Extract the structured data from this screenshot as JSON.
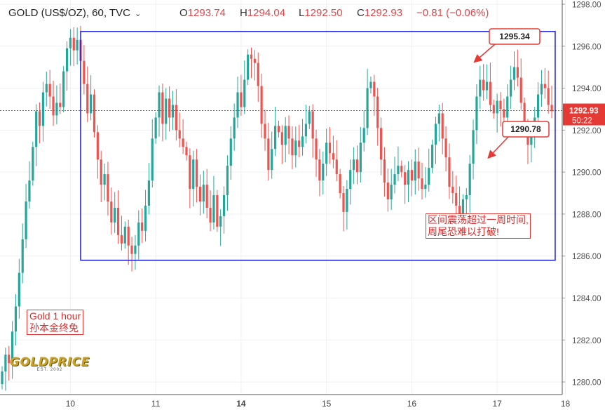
{
  "header": {
    "symbol": "GOLD (US$/OZ), 60, TVC",
    "open_label": "O",
    "open_value": "1293.74",
    "high_label": "H",
    "high_value": "1294.04",
    "low_label": "L",
    "low_value": "1292.50",
    "close_label": "C",
    "close_value": "1292.93",
    "change": "−0.81 (−0.06%)"
  },
  "colors": {
    "up": "#26a69a",
    "down": "#ef5350",
    "box": "#1a1ad6",
    "callout": "#e53935",
    "price_line": "#e53935",
    "axis_text": "#555555"
  },
  "current_price_tag": {
    "price": "1292.93",
    "countdown": "50:22"
  },
  "price_callouts": [
    {
      "label": "1295.34",
      "price": 1295.34,
      "candle_index": 139
    },
    {
      "label": "1290.78",
      "price": 1290.78,
      "candle_index": 143
    }
  ],
  "annotation": {
    "line1": "区间震荡超过一周时间,",
    "line2": "周尾恐难以打破!"
  },
  "note": {
    "line1": "Gold 1 hour",
    "line2": "孙本金终免"
  },
  "logo": {
    "text": "GOLDPRICE",
    "sub": "EST. 2002"
  },
  "chart_data": {
    "type": "candlestick",
    "title": "GOLD (US$/OZ), 60, TVC",
    "ylim": [
      1279.4,
      1298.2
    ],
    "y_ticks": [
      1280,
      1282,
      1284,
      1286,
      1288,
      1290,
      1292,
      1294,
      1296,
      1298
    ],
    "x_ticks": [
      {
        "label": "10",
        "index": 20,
        "bold": false
      },
      {
        "label": "11",
        "index": 45,
        "bold": false
      },
      {
        "label": "14",
        "index": 70,
        "bold": true
      },
      {
        "label": "15",
        "index": 95,
        "bold": false
      },
      {
        "label": "16",
        "index": 120,
        "bold": false
      },
      {
        "label": "17",
        "index": 145,
        "bold": false
      },
      {
        "label": "18",
        "index": 165,
        "bold": false
      }
    ],
    "range_box": {
      "start_index": 23,
      "end_index": 162,
      "low": 1285.8,
      "high": 1296.7
    },
    "closes": [
      1280.5,
      1281.3,
      1280.9,
      1282.4,
      1283.6,
      1285.2,
      1286.8,
      1288.6,
      1289.6,
      1291.2,
      1292.9,
      1292.2,
      1293.8,
      1294.2,
      1293.6,
      1292.7,
      1293.3,
      1293.1,
      1294.8,
      1295.9,
      1296.4,
      1295.8,
      1296.3,
      1295.3,
      1294.2,
      1292.8,
      1293.7,
      1291.9,
      1290.6,
      1289.4,
      1289.9,
      1288.6,
      1287.6,
      1288.3,
      1287.0,
      1286.6,
      1287.4,
      1286.5,
      1286.1,
      1286.5,
      1287.6,
      1287.2,
      1288.4,
      1289.6,
      1291.6,
      1292.6,
      1293.8,
      1292.3,
      1293.5,
      1292.6,
      1293.2,
      1292.0,
      1291.6,
      1291.2,
      1290.8,
      1289.2,
      1290.6,
      1289.3,
      1288.6,
      1289.4,
      1288.3,
      1287.6,
      1288.9,
      1287.4,
      1287.9,
      1288.9,
      1290.3,
      1291.6,
      1292.6,
      1293.8,
      1293.1,
      1294.4,
      1295.6,
      1295.4,
      1295.2,
      1294.1,
      1292.3,
      1291.6,
      1290.1,
      1291.1,
      1292.2,
      1291.9,
      1291.3,
      1292.2,
      1291.6,
      1290.8,
      1291.5,
      1291.2,
      1291.7,
      1292.3,
      1292.9,
      1291.6,
      1290.6,
      1289.6,
      1290.4,
      1291.4,
      1290.9,
      1290.6,
      1289.9,
      1289.0,
      1288.1,
      1289.2,
      1290.1,
      1290.6,
      1290.0,
      1291.4,
      1292.1,
      1294.0,
      1294.3,
      1293.6,
      1292.1,
      1290.6,
      1289.5,
      1288.7,
      1289.4,
      1289.9,
      1290.3,
      1290.0,
      1289.4,
      1290.1,
      1289.6,
      1290.5,
      1289.7,
      1289.2,
      1289.4,
      1290.2,
      1291.3,
      1292.3,
      1292.8,
      1291.6,
      1290.7,
      1289.3,
      1289.0,
      1288.4,
      1288.0,
      1288.7,
      1288.9,
      1290.4,
      1292.0,
      1293.6,
      1294.4,
      1293.9,
      1294.3,
      1293.2,
      1292.8,
      1293.4,
      1293.0,
      1292.6,
      1293.6,
      1294.4,
      1295.0,
      1294.5,
      1293.3,
      1292.2,
      1291.3,
      1291.9,
      1292.6,
      1293.7,
      1294.2,
      1294.0,
      1293.2,
      1292.9
    ]
  }
}
